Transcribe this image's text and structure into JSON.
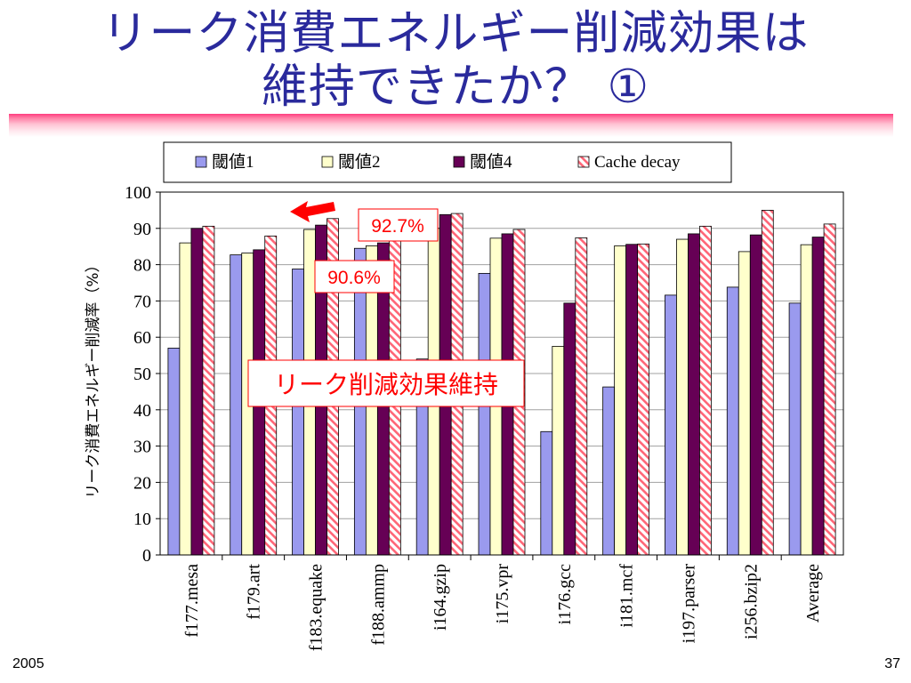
{
  "slide": {
    "title_line1": "リーク消費エネルギー削減効果は",
    "title_line2": "維持できたか？ ①",
    "footer_left": "2005",
    "page_number": "37"
  },
  "callouts": {
    "value_a": "92.7%",
    "value_b": "90.6%",
    "main": "リーク削減効果維持"
  },
  "colors": {
    "s1": "#9a9aee",
    "s2": "#ffffcc",
    "s3": "#660055",
    "s4_stripe": "#ff6677",
    "accent": "#ff0000"
  },
  "chart_data": {
    "type": "bar",
    "ylabel": "リーク消費エネルギー削減率（%）",
    "xlabel": "",
    "ylim": [
      0,
      100
    ],
    "yticks": [
      0,
      10,
      20,
      30,
      40,
      50,
      60,
      70,
      80,
      90,
      100
    ],
    "legend_position": "top",
    "grid": true,
    "categories": [
      "f177.mesa",
      "f179.art",
      "f183.equake",
      "f188.ammp",
      "i164.gzip",
      "i175.vpr",
      "i176.gcc",
      "i181.mcf",
      "i197.parser",
      "i256.bzip2",
      "Average"
    ],
    "series": [
      {
        "name": "閾値1",
        "values": [
          57,
          82.7,
          78.8,
          84.5,
          54,
          77.6,
          34,
          46.3,
          71.6,
          73.8,
          69.4
        ]
      },
      {
        "name": "閾値2",
        "values": [
          86,
          83.2,
          89.7,
          85.2,
          90,
          87.3,
          57.5,
          85.2,
          87.0,
          83.6,
          85.5
        ]
      },
      {
        "name": "閾値4",
        "values": [
          90,
          84.1,
          90.9,
          86,
          93.8,
          88.5,
          69.4,
          85.6,
          88.5,
          88.2,
          87.6
        ]
      },
      {
        "name": "Cache decay",
        "values": [
          90.6,
          87.9,
          92.7,
          92,
          94.1,
          89.7,
          87.4,
          85.7,
          90.6,
          95.0,
          91.2
        ]
      }
    ]
  }
}
